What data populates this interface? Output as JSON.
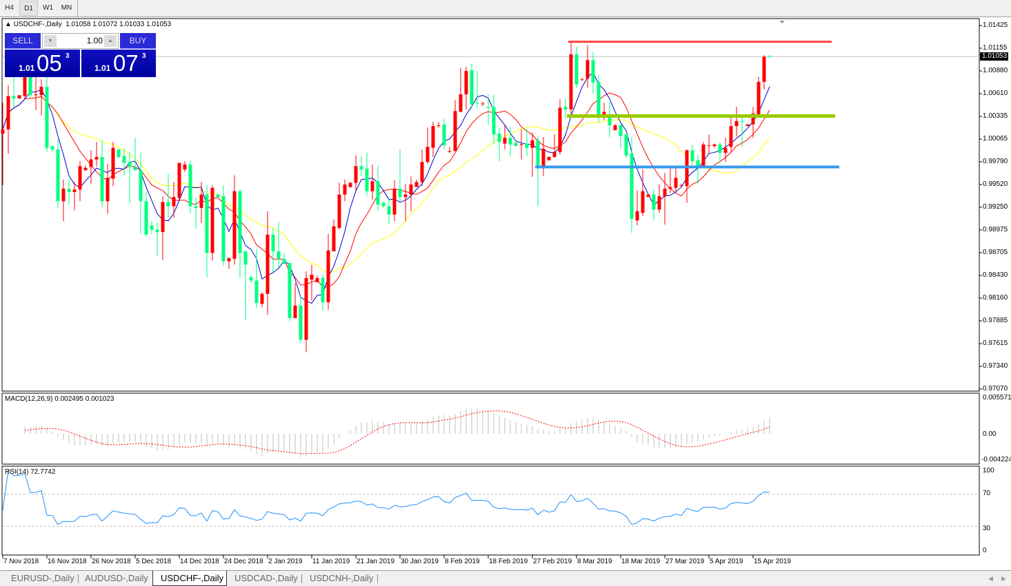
{
  "toolbar": {
    "timeframes": [
      {
        "label": "H4",
        "active": false
      },
      {
        "label": "D1",
        "active": true
      },
      {
        "label": "W1",
        "active": false
      },
      {
        "label": "MN",
        "active": false
      }
    ]
  },
  "chart": {
    "symbol_header": "USDCHF-,Daily",
    "ohlc_header": "1.01058 1.01072 1.01033 1.01053",
    "current_price": "1.01053"
  },
  "trade_panel": {
    "sell_label": "SELL",
    "buy_label": "BUY",
    "lot": "1.00",
    "sell": {
      "small": "1.01",
      "big": "05",
      "tiny": "3"
    },
    "buy": {
      "small": "1.01",
      "big": "07",
      "tiny": "3"
    }
  },
  "price_axis": [
    "1.01425",
    "1.01155",
    "1.00880",
    "1.00610",
    "1.00335",
    "1.00065",
    "0.99790",
    "0.99520",
    "0.99250",
    "0.98975",
    "0.98705",
    "0.98430",
    "0.98160",
    "0.97885",
    "0.97615",
    "0.97340",
    "0.97070"
  ],
  "macd": {
    "header": "MACD(12,26,9) 0.002495 0.001023",
    "axis": [
      "0.005571",
      "0.00",
      "-0.004224"
    ]
  },
  "rsi": {
    "header": "RSI(14) 72.7742",
    "axis": [
      "100",
      "70",
      "30",
      "0"
    ],
    "levels": [
      70,
      30
    ]
  },
  "date_axis": [
    "7 Nov 2018",
    "16 Nov 2018",
    "26 Nov 2018",
    "5 Dec 2018",
    "14 Dec 2018",
    "24 Dec 2018",
    "2 Jan 2019",
    "11 Jan 2019",
    "21 Jan 2019",
    "30 Jan 2019",
    "8 Feb 2019",
    "18 Feb 2019",
    "27 Feb 2019",
    "8 Mar 2019",
    "18 Mar 2019",
    "27 Mar 2019",
    "5 Apr 2019",
    "15 Apr 2019"
  ],
  "tabs": [
    {
      "label": "EURUSD-,Daily",
      "active": false
    },
    {
      "label": "AUDUSD-,Daily",
      "active": false
    },
    {
      "label": "USDCHF-,Daily",
      "active": true
    },
    {
      "label": "USDCAD-,Daily",
      "active": false
    },
    {
      "label": "USDCNH-,Daily",
      "active": false
    }
  ],
  "colors": {
    "bull": "#ff0000",
    "bear": "#00ff7f",
    "ma_fast": "#0000c8",
    "ma_mid": "#ff0000",
    "ma_slow": "#ffff00",
    "rsi": "#1e90ff",
    "macd_hist": "#c0c0c0",
    "macd_signal": "#ff0000"
  },
  "chart_data": {
    "type": "candlestick",
    "price_range": [
      0.9707,
      1.01425
    ],
    "levels": [
      {
        "price": 1.0123,
        "color": "#ff4040"
      },
      {
        "price": 1.0034,
        "color": "#99cc00"
      },
      {
        "price": 0.9973,
        "color": "#3399ee"
      }
    ],
    "candles": [
      [
        1.0013,
        1.005,
        0.9951,
        1.0018
      ],
      [
        1.0018,
        1.0071,
        0.9989,
        1.0058
      ],
      [
        1.0058,
        1.008,
        1.0044,
        1.0055
      ],
      [
        1.0055,
        1.0059,
        1.0055,
        1.0059
      ],
      [
        1.0058,
        1.0091,
        1.0055,
        1.0082
      ],
      [
        1.0082,
        1.0091,
        1.0056,
        1.0059
      ],
      [
        1.0059,
        1.0081,
        1.0041,
        1.006
      ],
      [
        1.0059,
        1.0078,
        1.0035,
        1.0069
      ],
      [
        1.0069,
        1.0081,
        0.9991,
        0.9996
      ],
      [
        0.9998,
        0.9999,
        0.9991,
        0.9994
      ],
      [
        0.9994,
        1.0006,
        0.9924,
        0.9932
      ],
      [
        0.9932,
        0.9958,
        0.9908,
        0.9947
      ],
      [
        0.9947,
        0.9958,
        0.9928,
        0.9943
      ],
      [
        0.9943,
        0.9955,
        0.9921,
        0.9946
      ],
      [
        0.9946,
        0.998,
        0.9932,
        0.9974
      ],
      [
        0.9969,
        0.9975,
        0.9969,
        0.9972
      ],
      [
        0.9973,
        0.9993,
        0.9953,
        0.9982
      ],
      [
        0.9982,
        1.0003,
        0.9974,
        0.9985
      ],
      [
        0.9985,
        1.0005,
        0.9925,
        0.9932
      ],
      [
        0.9932,
        0.9977,
        0.9917,
        0.996
      ],
      [
        0.9959,
        1.0003,
        0.995,
        0.9996
      ],
      [
        0.9994,
        0.9995,
        0.9983,
        0.9985
      ],
      [
        0.9986,
        0.9995,
        0.9963,
        0.9978
      ],
      [
        0.9979,
        0.9991,
        0.993,
        0.9973
      ],
      [
        0.9973,
        1.0008,
        0.9969,
        0.9969
      ],
      [
        0.9969,
        0.999,
        0.9893,
        0.9932
      ],
      [
        0.9932,
        0.9943,
        0.9889,
        0.9892
      ],
      [
        0.9903,
        0.9908,
        0.9893,
        0.9898
      ],
      [
        0.9898,
        0.9907,
        0.9867,
        0.9895
      ],
      [
        0.9895,
        0.9938,
        0.9862,
        0.9931
      ],
      [
        0.9931,
        0.9965,
        0.9912,
        0.9926
      ],
      [
        0.9926,
        0.9955,
        0.9912,
        0.9937
      ],
      [
        0.9936,
        0.9978,
        0.9934,
        0.9978
      ],
      [
        0.997,
        0.998,
        0.9967,
        0.9976
      ],
      [
        0.9976,
        0.9981,
        0.9917,
        0.9926
      ],
      [
        0.9926,
        0.9937,
        0.9899,
        0.9924
      ],
      [
        0.9924,
        0.9955,
        0.9906,
        0.994
      ],
      [
        0.994,
        0.9951,
        0.9841,
        0.987
      ],
      [
        0.987,
        0.9951,
        0.9861,
        0.9948
      ],
      [
        0.994,
        0.9941,
        0.9936,
        0.9937
      ],
      [
        0.9938,
        0.9951,
        0.9855,
        0.986
      ],
      [
        0.986,
        0.9864,
        0.9851,
        0.9864
      ],
      [
        0.9863,
        0.9963,
        0.9856,
        0.9944
      ],
      [
        0.9944,
        0.9946,
        0.984,
        0.987
      ],
      [
        0.9872,
        0.9872,
        0.9789,
        0.9856
      ],
      [
        0.9841,
        0.9843,
        0.9834,
        0.9837
      ],
      [
        0.9837,
        0.9875,
        0.9804,
        0.981
      ],
      [
        0.9809,
        0.9823,
        0.9805,
        0.9821
      ],
      [
        0.9821,
        0.992,
        0.9796,
        0.9892
      ],
      [
        0.9892,
        0.99,
        0.9847,
        0.9872
      ],
      [
        0.9872,
        0.9907,
        0.9853,
        0.9863
      ],
      [
        0.9863,
        0.987,
        0.9857,
        0.9857
      ],
      [
        0.9858,
        0.9858,
        0.9788,
        0.9792
      ],
      [
        0.9792,
        0.9834,
        0.9792,
        0.9807
      ],
      [
        0.9807,
        0.9818,
        0.9762,
        0.9766
      ],
      [
        0.9766,
        0.9848,
        0.9751,
        0.984
      ],
      [
        0.9838,
        0.9856,
        0.9813,
        0.9844
      ],
      [
        0.9835,
        0.9843,
        0.9835,
        0.984
      ],
      [
        0.984,
        0.9844,
        0.9801,
        0.9811
      ],
      [
        0.9811,
        0.9893,
        0.9802,
        0.9873
      ],
      [
        0.9872,
        0.991,
        0.9872,
        0.9902
      ],
      [
        0.99,
        0.9954,
        0.9898,
        0.994
      ],
      [
        0.994,
        0.9958,
        0.9932,
        0.9952
      ],
      [
        0.9949,
        0.9955,
        0.9948,
        0.9954
      ],
      [
        0.9954,
        0.9987,
        0.9945,
        0.9974
      ],
      [
        0.9974,
        0.9986,
        0.9962,
        0.997
      ],
      [
        0.9971,
        0.999,
        0.9939,
        0.9944
      ],
      [
        0.9944,
        0.9976,
        0.9934,
        0.9956
      ],
      [
        0.9956,
        0.9974,
        0.9921,
        0.9928
      ],
      [
        0.993,
        0.9932,
        0.9924,
        0.9926
      ],
      [
        0.9926,
        0.9935,
        0.9904,
        0.9916
      ],
      [
        0.9916,
        0.9957,
        0.9908,
        0.9947
      ],
      [
        0.9947,
        0.9994,
        0.9932,
        0.9937
      ],
      [
        0.9937,
        0.9953,
        0.9908,
        0.994
      ],
      [
        0.994,
        0.9962,
        0.992,
        0.9952
      ],
      [
        0.9949,
        0.9958,
        0.9949,
        0.9955
      ],
      [
        0.9955,
        0.9994,
        0.995,
        0.9979
      ],
      [
        0.9979,
        1.002,
        0.9977,
        0.9997
      ],
      [
        0.9996,
        1.0027,
        0.9985,
        1.0022
      ],
      [
        1.0022,
        1.0027,
        1.002,
        1.0023
      ],
      [
        1.0024,
        1.0031,
        0.9995,
        0.9999
      ],
      [
        0.9991,
        0.9997,
        0.999,
        0.9992
      ],
      [
        0.9992,
        1.0053,
        0.9992,
        1.004
      ],
      [
        1.0039,
        1.0092,
        1.0039,
        1.006
      ],
      [
        1.006,
        1.0093,
        1.0042,
        1.0088
      ],
      [
        1.0089,
        1.0097,
        1.0043,
        1.0048
      ],
      [
        1.005,
        1.0088,
        1.0043,
        1.0049
      ],
      [
        1.0049,
        1.0051,
        1.0046,
        1.0049
      ],
      [
        1.0045,
        1.006,
        1.0023,
        1.0044
      ],
      [
        1.0045,
        1.006,
        1.0,
        1.0012
      ],
      [
        1.0013,
        1.002,
        0.998,
        1.0003
      ],
      [
        1.0001,
        1.0023,
        0.9994,
        1.0008
      ],
      [
        1.0008,
        1.0021,
        0.9986,
        1.0
      ],
      [
        1.0002,
        1.0005,
        0.9998,
        0.9998
      ],
      [
        0.9999,
        1.0018,
        0.9982,
        1.0
      ],
      [
        1.0001,
        1.0019,
        0.9986,
        0.9996
      ],
      [
        0.9996,
        1.0014,
        0.9961,
        1.0005
      ],
      [
        1.0005,
        1.001,
        0.9926,
        0.9973
      ],
      [
        0.9973,
        1.0009,
        0.9962,
        0.9995
      ],
      [
        0.9981,
        0.9986,
        0.9981,
        0.9985
      ],
      [
        0.9985,
        1.0012,
        0.9984,
        0.9991
      ],
      [
        0.9991,
        1.0054,
        0.9988,
        1.0044
      ],
      [
        1.0045,
        1.0055,
        1.0031,
        1.0042
      ],
      [
        1.0042,
        1.0124,
        1.0036,
        1.0108
      ],
      [
        1.0108,
        1.0117,
        1.0068,
        1.0072
      ],
      [
        1.0078,
        1.008,
        1.0076,
        1.0078
      ],
      [
        1.0079,
        1.0119,
        1.0068,
        1.0101
      ],
      [
        1.0101,
        1.0111,
        1.0061,
        1.0074
      ],
      [
        1.0075,
        1.0083,
        1.0026,
        1.0036
      ],
      [
        1.0036,
        1.005,
        1.0029,
        1.0039
      ],
      [
        1.0032,
        1.0051,
        1.0009,
        1.0023
      ],
      [
        1.0017,
        1.0024,
        1.0017,
        1.0023
      ],
      [
        1.0023,
        1.0024,
        0.9995,
        1.001
      ],
      [
        1.0012,
        1.0012,
        0.9984,
        0.9987
      ],
      [
        0.9989,
        1.0009,
        0.9894,
        0.9911
      ],
      [
        0.9909,
        0.9945,
        0.9903,
        0.992
      ],
      [
        0.9918,
        0.997,
        0.9914,
        0.9944
      ],
      [
        0.9937,
        0.994,
        0.9937,
        0.994
      ],
      [
        0.994,
        0.9946,
        0.9909,
        0.9922
      ],
      [
        0.9922,
        0.9952,
        0.9918,
        0.9938
      ],
      [
        0.9938,
        0.9966,
        0.9904,
        0.9947
      ],
      [
        0.9947,
        0.9972,
        0.9942,
        0.9949
      ],
      [
        0.9948,
        0.9972,
        0.9944,
        0.996
      ],
      [
        0.9951,
        0.9953,
        0.9949,
        0.9951
      ],
      [
        0.995,
        0.9994,
        0.993,
        0.9993
      ],
      [
        0.9993,
        1.0,
        0.9971,
        0.998
      ],
      [
        0.9981,
        0.9988,
        0.9953,
        0.9974
      ],
      [
        0.9974,
        1.0003,
        0.9972,
        1.0
      ],
      [
        0.9999,
        1.0012,
        0.9989,
        0.9999
      ],
      [
        0.9998,
        1.0001,
        0.9996,
        1.0
      ],
      [
        1.0,
        1.0003,
        0.9977,
        0.999
      ],
      [
        0.999,
        1.0008,
        0.9979,
        0.9996
      ],
      [
        0.9997,
        1.0032,
        0.999,
        1.0022
      ],
      [
        1.0022,
        1.0045,
        1.0009,
        1.0028
      ],
      [
        1.0028,
        1.0032,
        0.9997,
        1.0027
      ],
      [
        1.0022,
        1.0024,
        1.0022,
        1.0024
      ],
      [
        1.0024,
        1.0045,
        1.0008,
        1.0037
      ],
      [
        1.0036,
        1.0081,
        1.0034,
        1.0075
      ],
      [
        1.0075,
        1.0107,
        1.0066,
        1.0105
      ],
      [
        1.01058,
        1.01072,
        1.01033,
        1.01053
      ]
    ]
  }
}
